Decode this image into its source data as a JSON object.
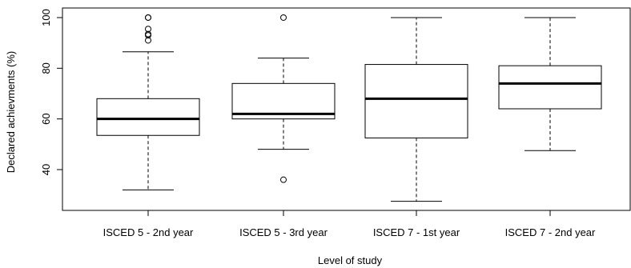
{
  "chart_data": {
    "type": "box",
    "xlabel": "Level of study",
    "ylabel": "Declared achievments (%)",
    "ylim": [
      25,
      102
    ],
    "yticks": [
      40,
      60,
      80,
      100
    ],
    "grid": false,
    "categories": [
      "ISCED 5 - 2nd year",
      "ISCED 5 - 3rd year",
      "ISCED 7 - 1st year",
      "ISCED 7 - 2nd year"
    ],
    "boxes": [
      {
        "whisker_low": 32,
        "q1": 53.5,
        "median": 60,
        "q3": 68,
        "whisker_high": 86.5,
        "outliers": [
          91,
          93,
          93.5,
          95.5,
          100,
          100
        ]
      },
      {
        "whisker_low": 48,
        "q1": 60,
        "median": 62,
        "q3": 74,
        "whisker_high": 84,
        "outliers": [
          36,
          100
        ]
      },
      {
        "whisker_low": 27.5,
        "q1": 52.5,
        "median": 68,
        "q3": 81.5,
        "whisker_high": 100,
        "outliers": []
      },
      {
        "whisker_low": 47.5,
        "q1": 64,
        "median": 74,
        "q3": 81,
        "whisker_high": 100,
        "outliers": []
      }
    ],
    "style": {
      "box_fill": "#ffffff",
      "stroke": "#000000"
    }
  }
}
